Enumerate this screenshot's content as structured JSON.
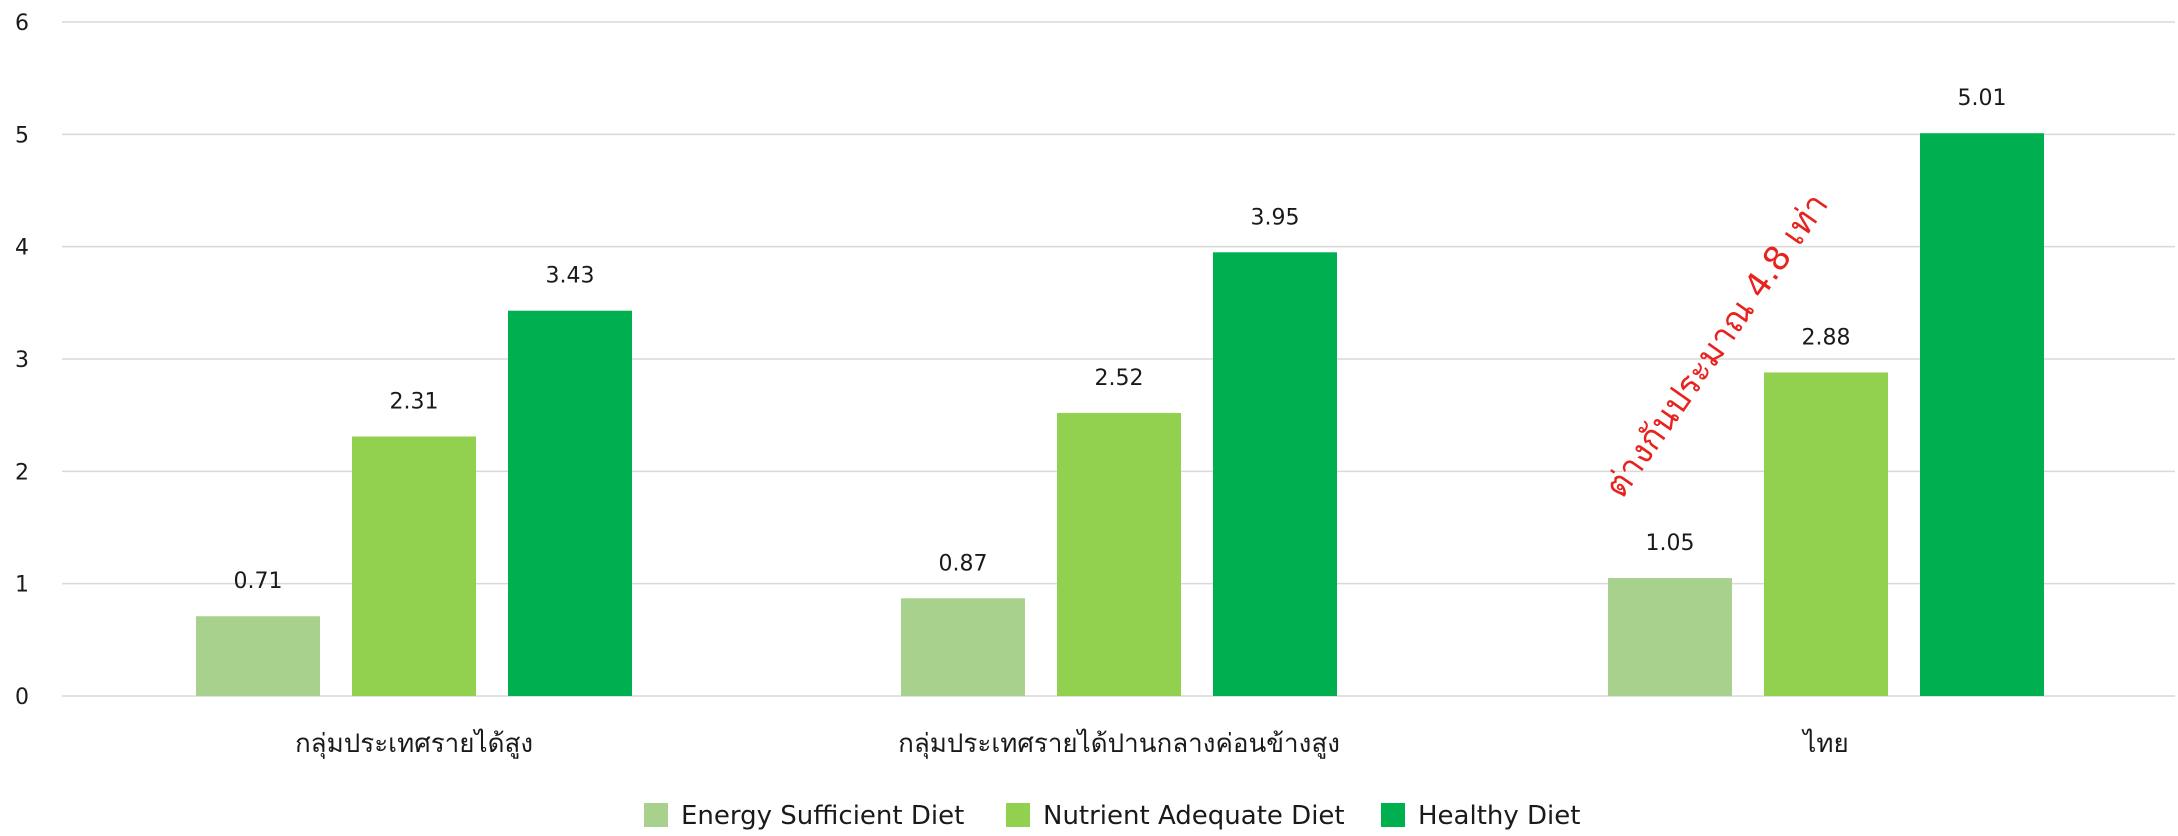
{
  "chart_data": {
    "type": "bar",
    "categories": [
      "กลุ่มประเทศรายได้สูง",
      "กลุ่มประเทศรายได้ปานกลางค่อนข้างสูง",
      "ไทย"
    ],
    "series": [
      {
        "name": "Energy Sufficient Diet",
        "color": "#a9d18e",
        "values": [
          0.71,
          0.87,
          1.05
        ]
      },
      {
        "name": "Nutrient Adequate Diet",
        "color": "#92d050",
        "values": [
          2.31,
          2.52,
          2.88
        ]
      },
      {
        "name": "Healthy Diet",
        "color": "#00b050",
        "values": [
          3.43,
          3.95,
          5.01
        ]
      }
    ],
    "ylim": [
      0,
      6
    ],
    "yticks": [
      0,
      1,
      2,
      3,
      4,
      5,
      6
    ],
    "grid": true,
    "legend_position": "bottom",
    "annotation": {
      "text": "ต่างกันประมาณ 4.8 เท่า",
      "color": "#e8231f"
    }
  }
}
